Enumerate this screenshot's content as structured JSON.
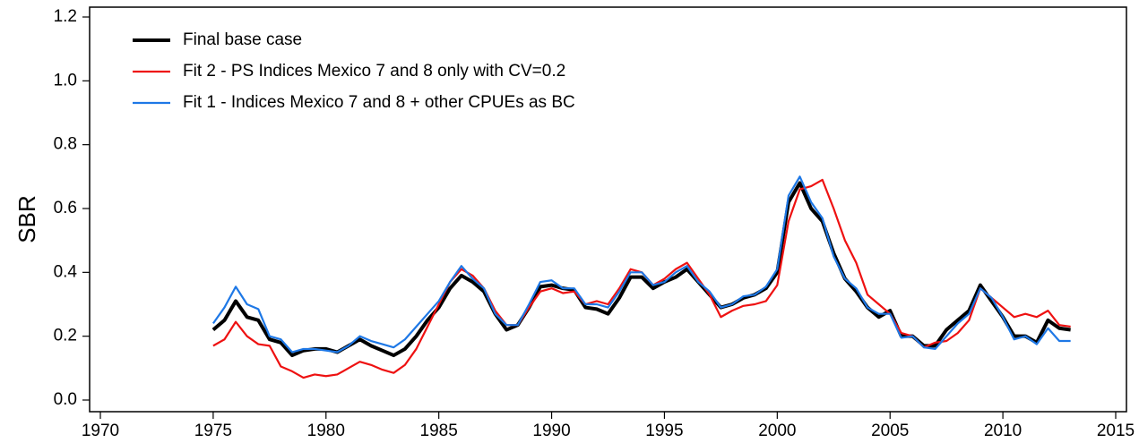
{
  "chart_data": {
    "type": "line",
    "y_label": "SBR",
    "xlim": [
      1970,
      2015
    ],
    "xticks": [
      1970,
      1975,
      1980,
      1985,
      1990,
      1995,
      2000,
      2005,
      2010,
      2015
    ],
    "ylim": [
      0,
      1.2
    ],
    "yticks": [
      {
        "value": 0,
        "label": "0.0"
      },
      {
        "value": 0.2,
        "label": "0.2"
      },
      {
        "value": 0.4,
        "label": "0.4"
      },
      {
        "value": 0.6,
        "label": "0.6"
      },
      {
        "value": 0.8,
        "label": "0.8"
      },
      {
        "value": 1.0,
        "label": "1.0"
      },
      {
        "value": 1.2,
        "label": "1.2"
      }
    ],
    "legend_position": "upper-left",
    "x": [
      1975,
      1975.5,
      1976,
      1976.5,
      1977,
      1977.5,
      1978,
      1978.5,
      1979,
      1979.5,
      1980,
      1980.5,
      1981,
      1981.5,
      1982,
      1982.5,
      1983,
      1983.5,
      1984,
      1984.5,
      1985,
      1985.5,
      1986,
      1986.5,
      1987,
      1987.5,
      1988,
      1988.5,
      1989,
      1989.5,
      1990,
      1990.5,
      1991,
      1991.5,
      1992,
      1992.5,
      1993,
      1993.5,
      1994,
      1994.5,
      1995,
      1995.5,
      1996,
      1996.5,
      1997,
      1997.5,
      1998,
      1998.5,
      1999,
      1999.5,
      2000,
      2000.5,
      2001,
      2001.5,
      2002,
      2002.5,
      2003,
      2003.5,
      2004,
      2004.5,
      2005,
      2005.5,
      2006,
      2006.5,
      2007,
      2007.5,
      2008,
      2008.5,
      2009,
      2009.5,
      2010,
      2010.5,
      2011,
      2011.5,
      2012,
      2012.5,
      2013
    ],
    "series": [
      {
        "name": "Final base case",
        "color": "#000000",
        "width": 4,
        "values": [
          0.22,
          0.25,
          0.31,
          0.26,
          0.25,
          0.19,
          0.18,
          0.14,
          0.155,
          0.16,
          0.16,
          0.15,
          0.17,
          0.19,
          0.17,
          0.155,
          0.14,
          0.16,
          0.2,
          0.25,
          0.29,
          0.35,
          0.39,
          0.37,
          0.34,
          0.27,
          0.22,
          0.235,
          0.29,
          0.355,
          0.36,
          0.35,
          0.345,
          0.29,
          0.285,
          0.27,
          0.32,
          0.385,
          0.385,
          0.35,
          0.37,
          0.385,
          0.41,
          0.37,
          0.33,
          0.29,
          0.3,
          0.32,
          0.33,
          0.35,
          0.4,
          0.62,
          0.68,
          0.6,
          0.56,
          0.46,
          0.38,
          0.34,
          0.29,
          0.26,
          0.28,
          0.2,
          0.2,
          0.17,
          0.17,
          0.22,
          0.25,
          0.28,
          0.36,
          0.31,
          0.26,
          0.2,
          0.2,
          0.18,
          0.25,
          0.225,
          0.22
        ]
      },
      {
        "name": "Fit 2 - PS Indices Mexico 7 and 8 only with CV=0.2",
        "color": "#ee1111",
        "width": 2.2,
        "values": [
          0.17,
          0.19,
          0.245,
          0.2,
          0.175,
          0.17,
          0.105,
          0.09,
          0.07,
          0.08,
          0.075,
          0.08,
          0.1,
          0.12,
          0.11,
          0.095,
          0.085,
          0.11,
          0.16,
          0.23,
          0.3,
          0.37,
          0.41,
          0.39,
          0.35,
          0.28,
          0.235,
          0.235,
          0.29,
          0.34,
          0.35,
          0.335,
          0.34,
          0.3,
          0.31,
          0.3,
          0.35,
          0.41,
          0.4,
          0.36,
          0.38,
          0.41,
          0.43,
          0.38,
          0.33,
          0.26,
          0.28,
          0.295,
          0.3,
          0.31,
          0.36,
          0.56,
          0.66,
          0.67,
          0.69,
          0.6,
          0.5,
          0.43,
          0.33,
          0.3,
          0.27,
          0.21,
          0.2,
          0.165,
          0.18,
          0.185,
          0.21,
          0.25,
          0.35,
          0.32,
          0.29,
          0.26,
          0.27,
          0.26,
          0.28,
          0.235,
          0.23
        ]
      },
      {
        "name": "Fit 1 - Indices Mexico 7 and 8 + other CPUEs as BC",
        "color": "#1e78e6",
        "width": 2.2,
        "values": [
          0.24,
          0.29,
          0.355,
          0.3,
          0.285,
          0.2,
          0.19,
          0.15,
          0.16,
          0.16,
          0.155,
          0.15,
          0.17,
          0.2,
          0.185,
          0.175,
          0.165,
          0.19,
          0.23,
          0.27,
          0.31,
          0.37,
          0.42,
          0.38,
          0.35,
          0.27,
          0.235,
          0.235,
          0.3,
          0.37,
          0.375,
          0.35,
          0.35,
          0.3,
          0.3,
          0.29,
          0.34,
          0.4,
          0.4,
          0.36,
          0.37,
          0.4,
          0.42,
          0.37,
          0.34,
          0.29,
          0.3,
          0.325,
          0.33,
          0.355,
          0.41,
          0.64,
          0.7,
          0.62,
          0.57,
          0.45,
          0.38,
          0.35,
          0.29,
          0.27,
          0.27,
          0.195,
          0.2,
          0.165,
          0.16,
          0.2,
          0.24,
          0.27,
          0.35,
          0.32,
          0.26,
          0.19,
          0.2,
          0.175,
          0.225,
          0.185,
          0.185
        ]
      }
    ]
  }
}
